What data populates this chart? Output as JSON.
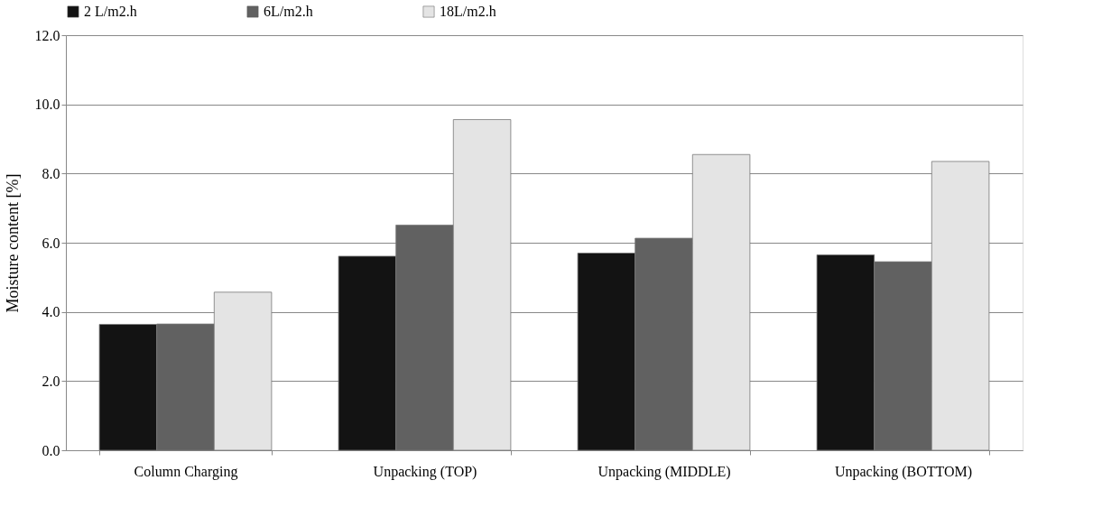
{
  "chart_data": {
    "type": "bar",
    "ylabel": "Moisture content [%]",
    "categories": [
      "Column Charging",
      "Unpacking (TOP)",
      "Unpacking (MIDDLE)",
      "Unpacking (BOTTOM)"
    ],
    "series": [
      {
        "name": "2 L/m2.h",
        "color": "#131313",
        "values": [
          3.64,
          5.61,
          5.7,
          5.65
        ]
      },
      {
        "name": "6L/m2.h",
        "color": "#616161",
        "values": [
          3.65,
          6.51,
          6.13,
          5.45
        ]
      },
      {
        "name": "18L/m2.h",
        "color": "#e4e4e4",
        "values": [
          4.57,
          9.56,
          8.55,
          8.35
        ]
      }
    ],
    "ylim": [
      0,
      12
    ],
    "yticks": [
      {
        "value": 0,
        "label": "0.0"
      },
      {
        "value": 2,
        "label": "2.0"
      },
      {
        "value": 4,
        "label": "4.0"
      },
      {
        "value": 6,
        "label": "6.0"
      },
      {
        "value": 8,
        "label": "8.0"
      },
      {
        "value": 10,
        "label": "10.0"
      },
      {
        "value": 12,
        "label": "12.0"
      }
    ],
    "grid": "y",
    "legend": "top"
  }
}
